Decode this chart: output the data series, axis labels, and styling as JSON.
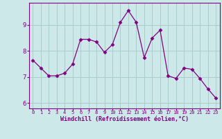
{
  "x": [
    0,
    1,
    2,
    3,
    4,
    5,
    6,
    7,
    8,
    9,
    10,
    11,
    12,
    13,
    14,
    15,
    16,
    17,
    18,
    19,
    20,
    21,
    22,
    23
  ],
  "y": [
    7.65,
    7.35,
    7.05,
    7.05,
    7.15,
    7.5,
    8.45,
    8.45,
    8.35,
    7.95,
    8.25,
    9.1,
    9.55,
    9.1,
    7.75,
    8.5,
    8.8,
    7.05,
    6.95,
    7.35,
    7.3,
    6.95,
    6.55,
    6.2
  ],
  "line_color": "#800080",
  "marker": "D",
  "marker_size": 2.5,
  "bg_color": "#cce8e8",
  "grid_color": "#aacccc",
  "xlabel": "Windchill (Refroidissement éolien,°C)",
  "ylim": [
    5.8,
    9.85
  ],
  "xlim": [
    -0.5,
    23.5
  ],
  "yticks": [
    6,
    7,
    8,
    9
  ],
  "xticks": [
    0,
    1,
    2,
    3,
    4,
    5,
    6,
    7,
    8,
    9,
    10,
    11,
    12,
    13,
    14,
    15,
    16,
    17,
    18,
    19,
    20,
    21,
    22,
    23
  ],
  "tick_color": "#800080",
  "spine_color": "#800080",
  "xlabel_color": "#800080",
  "xlabel_fontsize": 6.0,
  "xtick_fontsize": 5.0,
  "ytick_fontsize": 6.5
}
